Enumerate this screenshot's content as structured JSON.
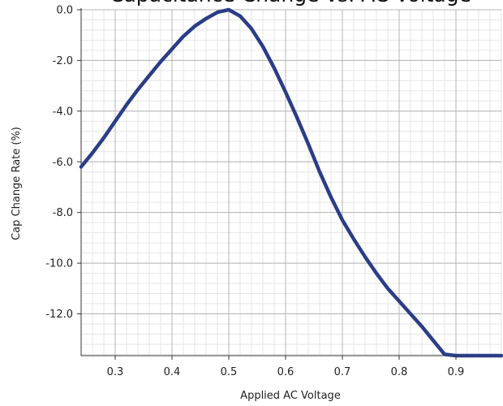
{
  "chart_data": {
    "type": "line",
    "title": "Capacitance Change vs. AC Voltage",
    "xlabel": "Applied AC Voltage",
    "ylabel": "Cap Change Rate (%)",
    "xlim": [
      0.24,
      0.98
    ],
    "ylim": [
      -13.65,
      0.0
    ],
    "x_ticks": [
      0.3,
      0.4,
      0.5,
      0.6,
      0.7,
      0.8,
      0.9
    ],
    "x_tick_labels": [
      "0.3",
      "0.4",
      "0.5",
      "0.6",
      "0.7",
      "0.8",
      "0.9"
    ],
    "y_ticks": [
      0.0,
      -2.0,
      -4.0,
      -6.0,
      -8.0,
      -10.0,
      -12.0
    ],
    "y_tick_labels": [
      "0.0",
      "-2.0",
      "-4.0",
      "-6.0",
      "-8.0",
      "-10.0",
      "-12.0"
    ],
    "grid": true,
    "line_color": "#2b3d86",
    "series": [
      {
        "x": [
          0.24,
          0.26,
          0.28,
          0.3,
          0.32,
          0.34,
          0.36,
          0.38,
          0.4,
          0.42,
          0.44,
          0.46,
          0.48,
          0.5,
          0.52,
          0.54,
          0.56,
          0.58,
          0.6,
          0.62,
          0.64,
          0.66,
          0.68,
          0.7,
          0.72,
          0.74,
          0.76,
          0.78,
          0.8,
          0.82,
          0.84,
          0.86,
          0.88,
          0.9,
          0.92,
          0.94,
          0.96,
          0.98
        ],
        "y": [
          -6.2,
          -5.65,
          -5.05,
          -4.4,
          -3.75,
          -3.15,
          -2.6,
          -2.05,
          -1.55,
          -1.05,
          -0.65,
          -0.35,
          -0.1,
          0.0,
          -0.25,
          -0.75,
          -1.45,
          -2.3,
          -3.25,
          -4.25,
          -5.3,
          -6.4,
          -7.4,
          -8.3,
          -9.05,
          -9.75,
          -10.4,
          -11.0,
          -11.5,
          -12.0,
          -12.5,
          -13.05,
          -13.6,
          -13.65,
          -13.65,
          -13.65,
          -13.65,
          -13.65
        ]
      }
    ]
  }
}
